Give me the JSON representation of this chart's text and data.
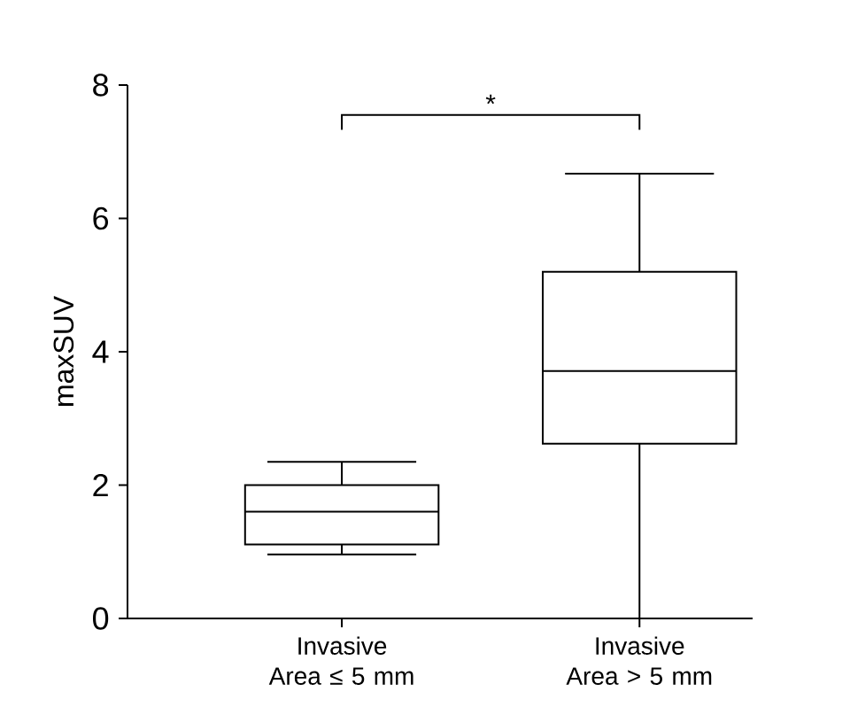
{
  "chart_data": {
    "type": "box",
    "categories": [
      "Invasive Area ≤ 5 mm",
      "Invasive Area > 5 mm"
    ],
    "ylabel": "maxSUV",
    "ylim": [
      0,
      8
    ],
    "yticks": [
      0,
      2,
      4,
      6,
      8
    ],
    "boxes": [
      {
        "low": 0.96,
        "q1": 1.11,
        "median": 1.6,
        "q3": 2.0,
        "high": 2.35
      },
      {
        "low": 0,
        "q1": 2.62,
        "median": 3.71,
        "q3": 5.2,
        "high": 6.67
      }
    ],
    "annotations": [
      "*"
    ]
  }
}
